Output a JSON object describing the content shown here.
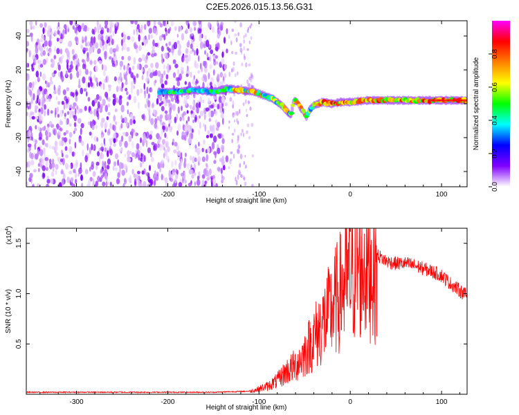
{
  "title": "C2E5.2026.015.13.56.G31",
  "chart_data": [
    {
      "type": "heatmap",
      "name": "frequency-spectrogram",
      "xlabel": "Height of straight line (km)",
      "ylabel": "Frequency (Hz)",
      "xlim": [
        -355,
        128
      ],
      "ylim": [
        -49,
        49
      ],
      "xticks": [
        -300,
        -200,
        -100,
        0,
        100
      ],
      "xtick_labels": [
        "-300",
        "-200",
        "-100",
        "0",
        "100"
      ],
      "yticks": [
        -40,
        -20,
        0,
        20,
        40
      ],
      "ytick_labels": [
        "-40",
        "-20",
        "0",
        "20",
        "40"
      ],
      "noise_region_end_km": -135,
      "sparse_noise_band_km": [
        -133,
        -106
      ],
      "signal_track": {
        "x": [
          -210,
          -190,
          -170,
          -150,
          -135,
          -120,
          -105,
          -95,
          -85,
          -80,
          -75,
          -70,
          -65,
          -62,
          -58,
          -55,
          -52,
          -48,
          -45,
          -40,
          -35,
          -30,
          -20,
          -10,
          0,
          20,
          40,
          60,
          80,
          100,
          128
        ],
        "y": [
          7,
          7,
          8,
          7,
          9,
          8,
          7,
          5,
          3,
          1,
          -1,
          -4,
          -7,
          2,
          1,
          -2,
          -4,
          -8,
          -4,
          -1,
          0,
          1,
          0,
          1,
          1,
          2,
          2,
          2,
          2,
          2,
          2
        ]
      },
      "colorbar": {
        "label": "Normalized spectral amplitude",
        "range": [
          0.0,
          1.0
        ],
        "ticks": [
          0.0,
          0.2,
          0.4,
          0.6,
          0.8
        ],
        "tick_labels": [
          "0.0",
          "0.2",
          "0.4",
          "0.6",
          "0.8"
        ],
        "colors": [
          "#ffffff",
          "#8000ff",
          "#0000ff",
          "#00ffff",
          "#00ff00",
          "#ffff00",
          "#ff8000",
          "#ff0000",
          "#ff00ff"
        ]
      }
    },
    {
      "type": "line",
      "name": "snr-profile",
      "xlabel": "Height of straight line (km)",
      "ylabel": "SNR (10 * v/v)",
      "yscale_label": "(x10",
      "yscale_exponent": "4",
      "xlim": [
        -355,
        128
      ],
      "ylim": [
        0.0,
        1.65
      ],
      "xticks": [
        -300,
        -200,
        -100,
        0,
        100
      ],
      "xtick_labels": [
        "-300",
        "-200",
        "-100",
        "0",
        "100"
      ],
      "yticks": [
        0.5,
        1.0,
        1.5
      ],
      "ytick_labels": [
        "0.5",
        "1.0",
        "1.5"
      ],
      "line_color": "#ff0000",
      "series": [
        {
          "name": "SNR",
          "x": [
            -355,
            -150,
            -110,
            -100,
            -90,
            -80,
            -70,
            -60,
            -50,
            -40,
            -30,
            -20,
            -10,
            0,
            10,
            20,
            30,
            40,
            50,
            60,
            70,
            80,
            90,
            100,
            110,
            120,
            128
          ],
          "y": [
            0.02,
            0.02,
            0.03,
            0.06,
            0.09,
            0.15,
            0.25,
            0.32,
            0.45,
            0.62,
            0.78,
            0.95,
            1.15,
            1.3,
            1.42,
            1.44,
            1.38,
            1.32,
            1.3,
            1.3,
            1.28,
            1.25,
            1.22,
            1.18,
            1.1,
            1.03,
            0.98
          ]
        }
      ]
    }
  ]
}
